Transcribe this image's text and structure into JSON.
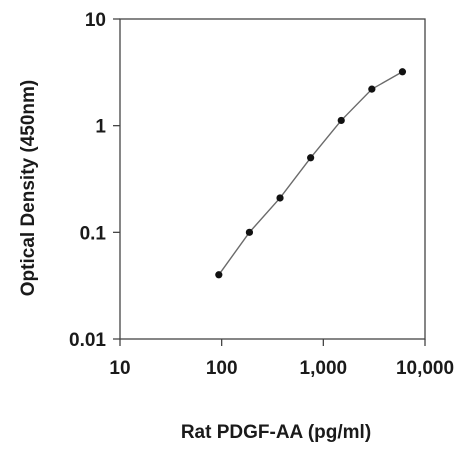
{
  "chart_data": {
    "type": "line",
    "xlabel": "Rat PDGF-AA (pg/ml)",
    "ylabel": "Optical Density (450nm)",
    "x_scale": "log",
    "y_scale": "log",
    "xlim": [
      10,
      10000
    ],
    "ylim": [
      0.01,
      10
    ],
    "x_ticks": [
      {
        "value": 10,
        "label": "10"
      },
      {
        "value": 100,
        "label": "100"
      },
      {
        "value": 1000,
        "label": "1,000"
      },
      {
        "value": 10000,
        "label": "10,000"
      }
    ],
    "y_ticks": [
      {
        "value": 0.01,
        "label": "0.01"
      },
      {
        "value": 0.1,
        "label": "0.1"
      },
      {
        "value": 1,
        "label": "1"
      },
      {
        "value": 10,
        "label": "10"
      }
    ],
    "grid": false,
    "legend": "none",
    "series": [
      {
        "x": [
          93.75,
          187.5,
          375,
          750,
          1500,
          3000,
          6000
        ],
        "y": [
          0.04,
          0.1,
          0.21,
          0.5,
          1.12,
          2.2,
          3.2
        ]
      }
    ],
    "colors": {
      "line": "#6b6b6b",
      "marker": "#111111",
      "axis": "#444444",
      "text": "#1a1a1a"
    }
  }
}
